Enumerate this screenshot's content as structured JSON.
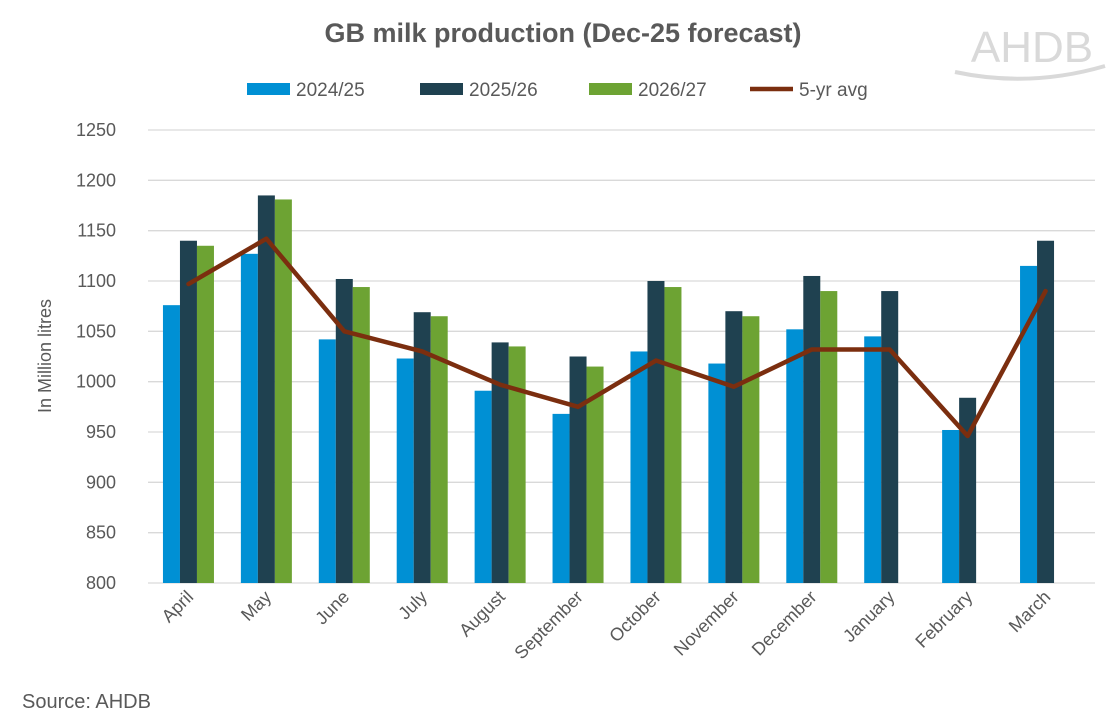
{
  "chart_data": {
    "type": "bar",
    "title": "GB milk production (Dec-25 forecast)",
    "xlabel": "",
    "ylabel": "In Million litres",
    "ylim": [
      800,
      1250
    ],
    "yticks": [
      800,
      850,
      900,
      950,
      1000,
      1050,
      1100,
      1150,
      1200,
      1250
    ],
    "grid": true,
    "legend_position": "top",
    "categories": [
      "April",
      "May",
      "June",
      "July",
      "August",
      "September",
      "October",
      "November",
      "December",
      "January",
      "February",
      "March"
    ],
    "series": [
      {
        "name": "2024/25",
        "type": "bar",
        "color": "#0090d4",
        "values": [
          1076,
          1127,
          1042,
          1023,
          991,
          968,
          1030,
          1018,
          1052,
          1045,
          952,
          1115
        ]
      },
      {
        "name": "2025/26",
        "type": "bar",
        "color": "#1f4150",
        "values": [
          1140,
          1185,
          1102,
          1069,
          1039,
          1025,
          1100,
          1070,
          1105,
          1090,
          984,
          1140
        ]
      },
      {
        "name": "2026/27",
        "type": "bar",
        "color": "#6da333",
        "values": [
          1135,
          1181,
          1094,
          1065,
          1035,
          1015,
          1094,
          1065,
          1090,
          null,
          null,
          null
        ]
      },
      {
        "name": "5-yr avg",
        "type": "line",
        "color": "#7b2e0f",
        "values": [
          1097,
          1142,
          1050,
          1030,
          997,
          975,
          1021,
          995,
          1032,
          1032,
          946,
          1090
        ]
      }
    ]
  },
  "source": "Source: AHDB",
  "logo": "AHDB"
}
